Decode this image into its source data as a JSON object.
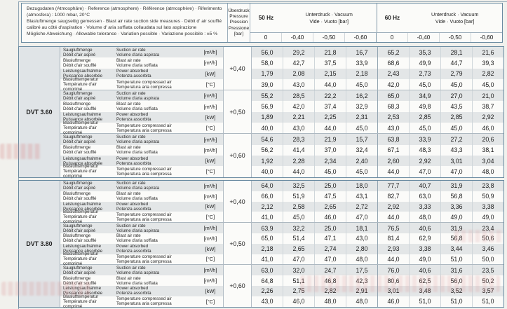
{
  "reference_note": {
    "line1": "Bezugsdaten (Atmosphäre) · Reference (atmosphere) · Référence (atmosphère) · Riferimento (atmosfera) :  1000 mbar, 20°C",
    "line2": "Blasluftmenge saugseitig gemessen · Blast air rate suction side measures · Débit d' air soufflé calibré au côté d'aspiration · Volume d' aria soffiata collaudata sul lato aspirazione",
    "line3": "Mögliche Abweichung · Allowable tolerance · Variation possible · Variazione possibile :  ±5 %"
  },
  "header": {
    "pressure_col": {
      "l1": "Überdruck",
      "l2": "Pressure",
      "l3": "Pression",
      "l4": "Pressione",
      "unit": "[bar]"
    },
    "hz50": "50 Hz",
    "hz60": "60 Hz",
    "vacuum": {
      "l1": "Unterdruck · Vacuum",
      "l2": "Vide · Vuoto   [bar]"
    },
    "subcols": [
      "0",
      "-0,40",
      "-0,50",
      "-0,60",
      "0",
      "-0,40",
      "-0,50",
      "-0,60"
    ]
  },
  "row_labels": [
    {
      "de": "Saugluftmenge",
      "fr": "Débit d'air aspiré",
      "en": "Suction air rate",
      "it": "Volume d'aria aspirata",
      "unit": "[m³/h]"
    },
    {
      "de": "Blasluftmenge",
      "fr": "Débit d'air soufflé",
      "en": "Blast air rate",
      "it": "Volume d'aria soffiata",
      "unit": "[m³/h]"
    },
    {
      "de": "Leistungsaufnahme",
      "fr": "Puissance absorbée",
      "en": "Power absorbed",
      "it": "Potenza assorbita",
      "unit": "[kW]"
    },
    {
      "de": "Blaslufttemperatur",
      "fr": "Température d'air comprimé",
      "en": "Temperature compressed air",
      "it": "Temperatura aria compressa",
      "unit": "[°C]"
    }
  ],
  "models": [
    {
      "name": "DVT 3.60",
      "blocks": [
        {
          "pressure": "+0,40",
          "rows": [
            [
              "56,0",
              "29,2",
              "21,8",
              "16,7",
              "65,2",
              "35,3",
              "28,1",
              "21,6"
            ],
            [
              "58,0",
              "42,7",
              "37,5",
              "33,9",
              "68,6",
              "49,9",
              "44,7",
              "39,3"
            ],
            [
              "1,79",
              "2,08",
              "2,15",
              "2,18",
              "2,43",
              "2,73",
              "2,79",
              "2,82"
            ],
            [
              "39,0",
              "43,0",
              "44,0",
              "45,0",
              "42,0",
              "45,0",
              "45,0",
              "45,0"
            ]
          ]
        },
        {
          "pressure": "+0,50",
          "rows": [
            [
              "55,2",
              "28,5",
              "22,2",
              "16,2",
              "65,0",
              "34,9",
              "27,0",
              "21,0"
            ],
            [
              "56,9",
              "42,0",
              "37,4",
              "32,9",
              "68,3",
              "49,8",
              "43,5",
              "38,7"
            ],
            [
              "1,89",
              "2,21",
              "2,25",
              "2,31",
              "2,53",
              "2,85",
              "2,85",
              "2,92"
            ],
            [
              "40,0",
              "43,0",
              "44,0",
              "45,0",
              "43,0",
              "45,0",
              "45,0",
              "46,0"
            ]
          ]
        },
        {
          "pressure": "+0,60",
          "rows": [
            [
              "54,6",
              "28,3",
              "21,9",
              "15,7",
              "63,8",
              "33,9",
              "27,2",
              "20,6"
            ],
            [
              "56,2",
              "41,4",
              "37,0",
              "32,4",
              "67,1",
              "48,3",
              "43,3",
              "38,1"
            ],
            [
              "1,92",
              "2,28",
              "2,34",
              "2,40",
              "2,60",
              "2,92",
              "3,01",
              "3,04"
            ],
            [
              "40,0",
              "44,0",
              "45,0",
              "45,0",
              "44,0",
              "47,0",
              "47,0",
              "48,0"
            ]
          ]
        }
      ]
    },
    {
      "name": "DVT 3.80",
      "blocks": [
        {
          "pressure": "+0,40",
          "rows": [
            [
              "64,0",
              "32,5",
              "25,0",
              "18,0",
              "77,7",
              "40,7",
              "31,9",
              "23,8"
            ],
            [
              "66,0",
              "51,9",
              "47,5",
              "43,1",
              "82,7",
              "63,0",
              "56,8",
              "50,9"
            ],
            [
              "2,12",
              "2,58",
              "2,65",
              "2,72",
              "2,92",
              "3,33",
              "3,36",
              "3,38"
            ],
            [
              "41,0",
              "45,0",
              "46,0",
              "47,0",
              "44,0",
              "48,0",
              "49,0",
              "49,0"
            ]
          ]
        },
        {
          "pressure": "+0,50",
          "rows": [
            [
              "63,9",
              "32,2",
              "25,0",
              "18,1",
              "76,5",
              "40,6",
              "31,9",
              "23,4"
            ],
            [
              "65,0",
              "51,4",
              "47,1",
              "43,0",
              "81,4",
              "62,9",
              "56,8",
              "50,6"
            ],
            [
              "2,18",
              "2,65",
              "2,74",
              "2,80",
              "2,93",
              "3,38",
              "3,44",
              "3,46"
            ],
            [
              "41,0",
              "47,0",
              "47,0",
              "48,0",
              "44,0",
              "49,0",
              "51,0",
              "50,0"
            ]
          ]
        },
        {
          "pressure": "+0,60",
          "rows": [
            [
              "63,0",
              "32,0",
              "24,7",
              "17,5",
              "76,0",
              "40,6",
              "31,6",
              "23,5"
            ],
            [
              "64,8",
              "51,1",
              "46,8",
              "42,3",
              "80,6",
              "62,5",
              "56,0",
              "50,2"
            ],
            [
              "2,26",
              "2,75",
              "2,82",
              "2,91",
              "3,01",
              "3,48",
              "3,52",
              "3,57"
            ],
            [
              "43,0",
              "46,0",
              "48,0",
              "48,0",
              "46,0",
              "51,0",
              "51,0",
              "51,0"
            ]
          ]
        }
      ]
    }
  ],
  "colors": {
    "table_border": "#6a8ba1",
    "row_shade": "#e3e6e7",
    "model_cell": "#e0e4e7",
    "watermark": "#d98f8f"
  }
}
